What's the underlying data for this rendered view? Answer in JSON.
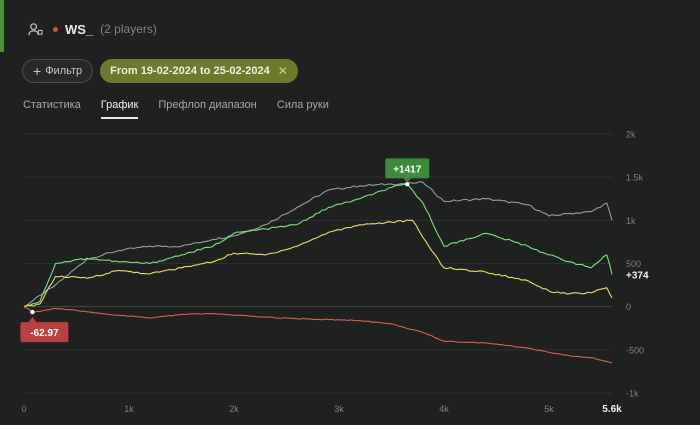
{
  "header": {
    "player_name": "WS_",
    "player_count": "(2 players)"
  },
  "filters": {
    "add_filter_label": "Фильтр",
    "date_range_label": "From 19-02-2024 to 25-02-2024"
  },
  "tabs": [
    {
      "label": "Статистика",
      "active": false
    },
    {
      "label": "График",
      "active": true
    },
    {
      "label": "Префлоп диапазон",
      "active": false
    },
    {
      "label": "Сила руки",
      "active": false
    }
  ],
  "colors": {
    "accent": "#4f8f3c",
    "date_chip": "#6b7a2b",
    "series_gray": "#9a9d9b",
    "series_green": "#7fe07f",
    "series_yellow": "#e8e05a",
    "series_red": "#e05a5a"
  },
  "chart_data": {
    "type": "line",
    "x_ticks": [
      "0",
      "1k",
      "2k",
      "3k",
      "4k",
      "5k",
      "5.6k"
    ],
    "y_ticks": [
      "2k",
      "1.5k",
      "1k",
      "500",
      "0",
      "-500",
      "-1k"
    ],
    "xlim": [
      0,
      5600
    ],
    "ylim": [
      -1000,
      2000
    ],
    "grid": true,
    "annotations": [
      {
        "label": "+1417",
        "x": 3650,
        "y": 1417
      },
      {
        "label": "+374",
        "x": 5600,
        "y": 374
      },
      {
        "label": "-62.97",
        "x": 80,
        "y": -62.97
      }
    ],
    "series": [
      {
        "color": "gray",
        "x": [
          0,
          300,
          600,
          900,
          1200,
          1500,
          1800,
          2000,
          2300,
          2600,
          2900,
          3200,
          3500,
          3700,
          3800,
          4000,
          4400,
          4800,
          5000,
          5200,
          5400,
          5550,
          5600
        ],
        "y": [
          0,
          250,
          550,
          650,
          700,
          700,
          780,
          820,
          950,
          1150,
          1350,
          1400,
          1420,
          1430,
          1440,
          1220,
          1250,
          1180,
          1050,
          1080,
          1100,
          1200,
          1000
        ]
      },
      {
        "color": "green",
        "x": [
          0,
          150,
          300,
          600,
          900,
          1200,
          1500,
          1800,
          2000,
          2300,
          2600,
          2900,
          3200,
          3500,
          3650,
          3800,
          4000,
          4400,
          4800,
          5000,
          5200,
          5400,
          5550,
          5600
        ],
        "y": [
          0,
          60,
          500,
          560,
          520,
          500,
          600,
          700,
          850,
          900,
          950,
          1150,
          1250,
          1380,
          1417,
          1200,
          700,
          850,
          700,
          600,
          520,
          450,
          600,
          374
        ]
      },
      {
        "color": "yellow",
        "x": [
          0,
          150,
          300,
          600,
          900,
          1200,
          1500,
          1800,
          2000,
          2300,
          2600,
          2900,
          3200,
          3500,
          3700,
          3800,
          4000,
          4400,
          4800,
          5000,
          5200,
          5400,
          5550,
          5600
        ],
        "y": [
          0,
          30,
          350,
          330,
          420,
          380,
          450,
          520,
          620,
          600,
          700,
          860,
          950,
          980,
          1000,
          800,
          450,
          400,
          300,
          180,
          150,
          160,
          220,
          100
        ]
      },
      {
        "color": "red",
        "x": [
          0,
          100,
          300,
          600,
          900,
          1200,
          1500,
          1800,
          2000,
          2300,
          2600,
          2900,
          3200,
          3500,
          3800,
          4000,
          4400,
          4800,
          5000,
          5200,
          5400,
          5600
        ],
        "y": [
          0,
          -62.97,
          -20,
          -60,
          -100,
          -130,
          -90,
          -80,
          -100,
          -120,
          -140,
          -150,
          -160,
          -200,
          -300,
          -400,
          -420,
          -480,
          -530,
          -570,
          -590,
          -650
        ]
      }
    ]
  }
}
